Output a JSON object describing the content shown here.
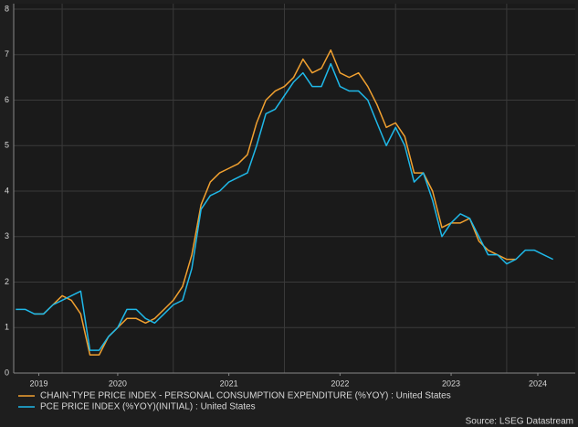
{
  "chart_data": {
    "type": "line",
    "x": [
      2019.583,
      2019.667,
      2019.75,
      2019.833,
      2019.917,
      2020,
      2020.083,
      2020.167,
      2020.25,
      2020.333,
      2020.417,
      2020.5,
      2020.583,
      2020.667,
      2020.75,
      2020.833,
      2020.917,
      2021,
      2021.083,
      2021.167,
      2021.25,
      2021.333,
      2021.417,
      2021.5,
      2021.583,
      2021.667,
      2021.75,
      2021.833,
      2021.917,
      2022,
      2022.083,
      2022.167,
      2022.25,
      2022.333,
      2022.417,
      2022.5,
      2022.583,
      2022.667,
      2022.75,
      2022.833,
      2022.917,
      2023,
      2023.083,
      2023.167,
      2023.25,
      2023.333,
      2023.417,
      2023.5,
      2023.583,
      2023.667,
      2023.75,
      2023.833,
      2023.917,
      2024,
      2024.083,
      2024.167,
      2024.25,
      2024.333,
      2024.417
    ],
    "series": [
      {
        "name": "CHAIN-TYPE PRICE INDEX - PERSONAL CONSUMPTION EXPENDITURE (%YOY) : United States",
        "color": "#f0a030",
        "values": [
          null,
          null,
          1.3,
          1.3,
          1.5,
          1.7,
          1.6,
          1.3,
          0.4,
          0.4,
          0.8,
          1.0,
          1.2,
          1.2,
          1.1,
          1.2,
          1.4,
          1.6,
          1.9,
          2.6,
          3.7,
          4.2,
          4.4,
          4.5,
          4.6,
          4.8,
          5.5,
          6.0,
          6.2,
          6.3,
          6.5,
          6.9,
          6.6,
          6.7,
          7.1,
          6.6,
          6.5,
          6.6,
          6.3,
          5.9,
          5.4,
          5.5,
          5.2,
          4.4,
          4.4,
          4.0,
          3.2,
          3.3,
          3.3,
          3.4,
          2.9,
          2.7,
          2.6,
          2.5,
          2.5,
          null,
          null,
          null,
          null
        ]
      },
      {
        "name": "PCE PRICE INDEX (%YOY)(INITIAL) : United States",
        "color": "#1fb8e8",
        "values": [
          1.4,
          1.4,
          1.3,
          1.3,
          1.5,
          1.6,
          1.7,
          1.8,
          0.5,
          0.5,
          0.8,
          1.0,
          1.4,
          1.4,
          1.2,
          1.1,
          1.3,
          1.5,
          1.6,
          2.3,
          3.6,
          3.9,
          4.0,
          4.2,
          4.3,
          4.4,
          5.0,
          5.7,
          5.8,
          6.1,
          6.4,
          6.6,
          6.3,
          6.3,
          6.8,
          6.3,
          6.2,
          6.2,
          6.0,
          5.5,
          5.0,
          5.4,
          5.0,
          4.2,
          4.4,
          3.8,
          3.0,
          3.3,
          3.5,
          3.4,
          3.0,
          2.6,
          2.6,
          2.4,
          2.5,
          2.7,
          2.7,
          2.6,
          2.5
        ]
      }
    ],
    "xlim": [
      2019.564,
      2024.617
    ],
    "xticks": [
      {
        "value": 2019.79,
        "label": "2019"
      },
      {
        "value": 2020.5,
        "label": "2020"
      },
      {
        "value": 2021.5,
        "label": "2021"
      },
      {
        "value": 2022.5,
        "label": "2022"
      },
      {
        "value": 2023.5,
        "label": "2023"
      },
      {
        "value": 2024.28,
        "label": "2024"
      }
    ],
    "xgrid": [
      2020,
      2021,
      2022,
      2023,
      2024
    ],
    "ylim": [
      0,
      8
    ],
    "yticks": [
      0,
      1,
      2,
      3,
      4,
      5,
      6,
      7,
      8
    ],
    "grid": true,
    "source": "Source: LSEG Datastream"
  }
}
